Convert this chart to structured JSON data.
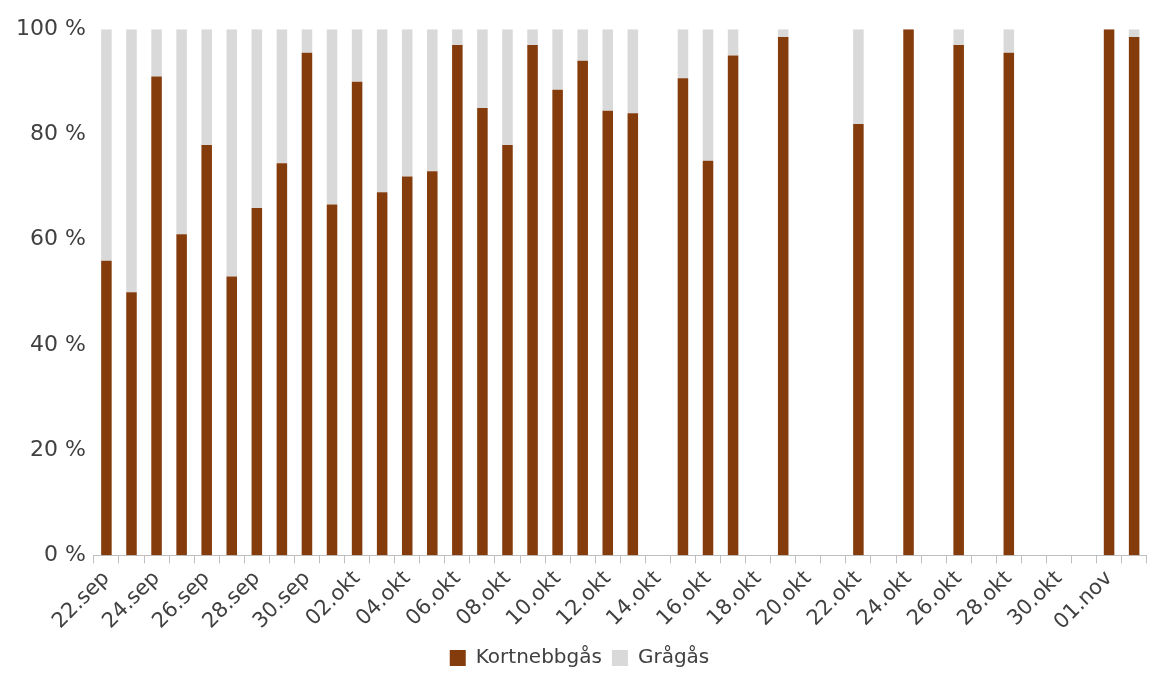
{
  "chart_data": {
    "type": "bar",
    "stacked": true,
    "categories": [
      "22.sep",
      null,
      "24.sep",
      null,
      "26.sep",
      null,
      "28.sep",
      null,
      "30.sep",
      null,
      "02.okt",
      null,
      "04.okt",
      null,
      "06.okt",
      null,
      "08.okt",
      null,
      "10.okt",
      null,
      "12.okt",
      null,
      "14.okt",
      null,
      "16.okt",
      null,
      "18.okt",
      null,
      "20.okt",
      null,
      "22.okt",
      null,
      "24.okt",
      null,
      "26.okt",
      null,
      "28.okt",
      null,
      "30.okt",
      null,
      "01.nov",
      null
    ],
    "series": [
      {
        "name": "Kortnebbgås",
        "color": "#843c0c",
        "values": [
          56,
          50,
          91,
          61,
          78,
          53,
          66,
          74.5,
          95.5,
          66.7,
          90,
          69,
          72,
          73,
          97,
          85,
          78,
          97,
          88.5,
          94,
          84.5,
          84,
          null,
          90.7,
          75,
          95,
          null,
          98.5,
          null,
          null,
          82,
          null,
          100,
          null,
          97,
          null,
          95.5,
          null,
          null,
          null,
          100,
          98.5
        ]
      },
      {
        "name": "Grågås",
        "color": "#d9d9d9",
        "values": [
          44,
          50,
          9,
          39,
          22,
          47,
          34,
          25.5,
          4.5,
          33.3,
          10,
          31,
          28,
          27,
          3,
          15,
          22,
          3,
          11.5,
          6,
          15.5,
          16,
          null,
          9.3,
          25,
          5,
          null,
          1.5,
          null,
          null,
          18,
          null,
          0,
          null,
          3,
          null,
          4.5,
          null,
          null,
          null,
          0,
          1.5
        ]
      }
    ],
    "ylim": [
      0,
      100
    ],
    "yticks": [
      {
        "value": 0,
        "label": "0 %"
      },
      {
        "value": 20,
        "label": "20 %"
      },
      {
        "value": 40,
        "label": "40 %"
      },
      {
        "value": 60,
        "label": "60 %"
      },
      {
        "value": 80,
        "label": "80 %"
      },
      {
        "value": 100,
        "label": "100 %"
      }
    ],
    "grid": false,
    "legend": "bottom"
  }
}
